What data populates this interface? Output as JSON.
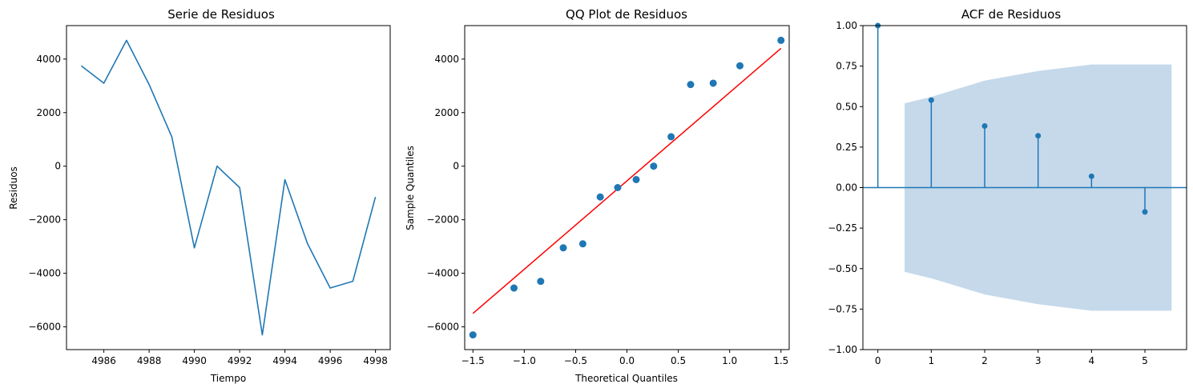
{
  "chart_data": [
    {
      "type": "line",
      "title": "Serie de Residuos",
      "xlabel": "Tiempo",
      "ylabel": "Residuos",
      "xlim": [
        4984.35,
        4998.65
      ],
      "ylim": [
        -6850,
        5250
      ],
      "xticks": [
        4986,
        4988,
        4990,
        4992,
        4994,
        4996,
        4998
      ],
      "yticks": [
        -6000,
        -4000,
        -2000,
        0,
        2000,
        4000
      ],
      "color": "#1f77b4",
      "grid": false,
      "x": [
        4985,
        4986,
        4987,
        4988,
        4989,
        4990,
        4991,
        4992,
        4993,
        4994,
        4995,
        4996,
        4997,
        4998
      ],
      "y": [
        3750,
        3100,
        4700,
        3050,
        1100,
        -3050,
        0,
        -800,
        -6300,
        -500,
        -2900,
        -4550,
        -4300,
        -1150
      ]
    },
    {
      "type": "scatter",
      "title": "QQ Plot de Residuos",
      "xlabel": "Theoretical Quantiles",
      "ylabel": "Sample Quantiles",
      "xlim": [
        -1.58,
        1.58
      ],
      "ylim": [
        -6850,
        5250
      ],
      "xticks": [
        -1.5,
        -1.0,
        -0.5,
        0.0,
        0.5,
        1.0,
        1.5
      ],
      "yticks": [
        -6000,
        -4000,
        -2000,
        0,
        2000,
        4000
      ],
      "point_color": "#1f77b4",
      "line_color": "#ff0000",
      "grid": false,
      "x": [
        -1.5,
        -1.1,
        -0.84,
        -0.62,
        -0.43,
        -0.26,
        -0.09,
        0.09,
        0.26,
        0.43,
        0.62,
        0.84,
        1.1,
        1.5
      ],
      "y": [
        -6300,
        -4550,
        -4300,
        -3050,
        -2900,
        -1150,
        -800,
        -500,
        0,
        1100,
        3050,
        3100,
        3750,
        4700
      ],
      "reference_line": {
        "x": [
          -1.5,
          1.5
        ],
        "y": [
          -5500,
          4400
        ]
      }
    },
    {
      "type": "stem",
      "title": "ACF de Residuos",
      "xlabel": "",
      "ylabel": "",
      "xlim": [
        -0.28,
        5.78
      ],
      "ylim": [
        -1.0,
        1.0
      ],
      "xticks": [
        0,
        1,
        2,
        3,
        4,
        5
      ],
      "yticks": [
        -1.0,
        -0.75,
        -0.5,
        -0.25,
        0.0,
        0.25,
        0.5,
        0.75,
        1.0
      ],
      "color": "#1f77b4",
      "band_color": "#c5d9eb",
      "grid": false,
      "x": [
        0,
        1,
        2,
        3,
        4,
        5
      ],
      "y": [
        1.0,
        0.54,
        0.38,
        0.32,
        0.07,
        -0.15
      ],
      "confidence_band": {
        "x": [
          0.5,
          1,
          2,
          3,
          4,
          5,
          5.5
        ],
        "upper": [
          0.52,
          0.56,
          0.66,
          0.72,
          0.76,
          0.76,
          0.76
        ]
      }
    }
  ]
}
